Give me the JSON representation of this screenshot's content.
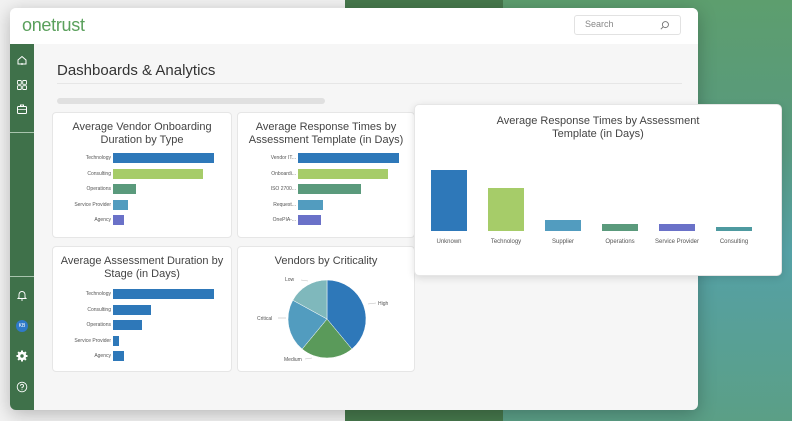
{
  "app": {
    "logo": "onetrust",
    "search_placeholder": "Search"
  },
  "sidebar": {
    "top_items": [
      {
        "name": "home",
        "icon": "home-icon"
      },
      {
        "name": "apps",
        "icon": "grid-icon"
      },
      {
        "name": "vendors",
        "icon": "briefcase-icon"
      }
    ],
    "bottom_items": [
      {
        "name": "notifications",
        "icon": "bell-icon"
      },
      {
        "name": "profile",
        "icon": "avatar",
        "initials": "KB"
      },
      {
        "name": "settings",
        "icon": "gear-icon"
      },
      {
        "name": "help",
        "icon": "help-icon"
      }
    ]
  },
  "page": {
    "title": "Dashboards & Analytics"
  },
  "colors": {
    "brand_green": "#5aa05c",
    "sidebar": "#3f714a",
    "blue": "#2e78b9",
    "lime": "#a6cc69",
    "green": "#5a9a7c",
    "light_blue": "#529cbf",
    "purple": "#6a71c8",
    "teal": "#4e9aa0",
    "pie_green": "#5a9a5a",
    "pie_light_teal": "#7fb8bc"
  },
  "chart_data": [
    {
      "type": "bar",
      "orientation": "horizontal",
      "title": "Average Vendor Onboarding Duration by Type",
      "categories": [
        "Technology",
        "Consulting",
        "Operations",
        "Service Provider",
        "Agency"
      ],
      "values": [
        100,
        89,
        23,
        15,
        11
      ],
      "colors": [
        "#2e78b9",
        "#a6cc69",
        "#5a9a7c",
        "#529cbf",
        "#6a71c8"
      ]
    },
    {
      "type": "bar",
      "orientation": "horizontal",
      "title": "Average Response Times by Assessment Template (in Days)",
      "categories": [
        "Vendor IT...",
        "Onboardi...",
        "ISO 2700...",
        "Request...",
        "OnePIA-..."
      ],
      "values": [
        100,
        89,
        62,
        25,
        23
      ],
      "colors": [
        "#2e78b9",
        "#a6cc69",
        "#5a9a7c",
        "#529cbf",
        "#6a71c8"
      ]
    },
    {
      "type": "bar",
      "orientation": "vertical",
      "title": "Average Response Times by Assessment Template (in Days)",
      "categories": [
        "Unknown",
        "Technology",
        "Supplier",
        "Operations",
        "Service Provider",
        "Consulting"
      ],
      "values": [
        100,
        71,
        18,
        12,
        12,
        6
      ],
      "colors": [
        "#2e78b9",
        "#a6cc69",
        "#529cbf",
        "#5a9a7c",
        "#6a71c8",
        "#4e9aa0"
      ]
    },
    {
      "type": "bar",
      "orientation": "horizontal",
      "title": "Average Assessment Duration by Stage (in Days)",
      "categories": [
        "Technology",
        "Consulting",
        "Operations",
        "Service Provider",
        "Agency"
      ],
      "values": [
        100,
        38,
        29,
        6,
        11
      ],
      "colors": [
        "#2e78b9",
        "#2e78b9",
        "#2e78b9",
        "#2e78b9",
        "#2e78b9"
      ]
    },
    {
      "type": "pie",
      "title": "Vendors by Criticality",
      "categories": [
        "High",
        "Medium",
        "Critical",
        "Low"
      ],
      "values": [
        39,
        22,
        22,
        17
      ],
      "colors": [
        "#2e78b9",
        "#5a9a5a",
        "#529cbf",
        "#7fb8bc"
      ]
    }
  ]
}
